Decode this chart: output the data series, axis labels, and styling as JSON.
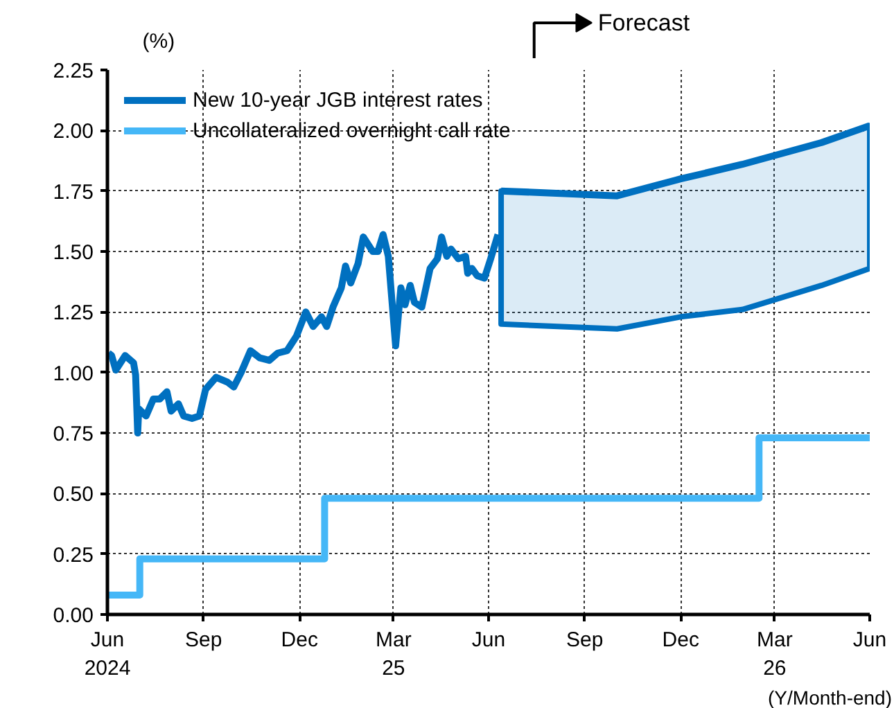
{
  "chart_data": {
    "type": "line",
    "ylabel": "(%)",
    "xlabel": "(Y/Month-end)",
    "xlim": [
      "2024-06-30",
      "2026-06-30"
    ],
    "xticks": [
      {
        "value": "2024-06-30",
        "label": "Jun\n2024"
      },
      {
        "value": "2024-09-30",
        "label": "Sep"
      },
      {
        "value": "2024-12-31",
        "label": "Dec"
      },
      {
        "value": "2025-03-31",
        "label": "Mar\n25"
      },
      {
        "value": "2025-06-30",
        "label": "Jun"
      },
      {
        "value": "2025-09-30",
        "label": "Sep"
      },
      {
        "value": "2025-12-31",
        "label": "Dec"
      },
      {
        "value": "2026-03-31",
        "label": "Mar\n26"
      },
      {
        "value": "2026-06-30",
        "label": "Jun"
      }
    ],
    "ylim": [
      0,
      2.25
    ],
    "yticks": [
      {
        "value": 0,
        "label": "0.00"
      },
      {
        "value": 0.25,
        "label": "0.25"
      },
      {
        "value": 0.5,
        "label": "0.50"
      },
      {
        "value": 0.75,
        "label": "0.75"
      },
      {
        "value": 1,
        "label": "1.00"
      },
      {
        "value": 1.25,
        "label": "1.25"
      },
      {
        "value": 1.5,
        "label": "1.50"
      },
      {
        "value": 1.75,
        "label": "1.75"
      },
      {
        "value": 2,
        "label": "2.00"
      },
      {
        "value": 2.25,
        "label": "2.25"
      }
    ],
    "grid": true,
    "legend": "top left",
    "annotations": [
      "Forecast"
    ],
    "series": [
      {
        "name": "New 10-year JGB interest rates",
        "color": "#0070c0",
        "x": [
          "2024-07-01",
          "2024-07-04",
          "2024-07-08",
          "2024-07-17",
          "2024-07-25",
          "2024-07-27",
          "2024-07-29",
          "2024-07-30",
          "2024-08-06",
          "2024-08-13",
          "2024-08-19",
          "2024-08-26",
          "2024-08-30",
          "2024-09-06",
          "2024-09-11",
          "2024-09-19",
          "2024-09-26",
          "2024-10-02",
          "2024-10-12",
          "2024-10-23",
          "2024-10-29",
          "2024-11-05",
          "2024-11-14",
          "2024-11-23",
          "2024-12-02",
          "2024-12-10",
          "2024-12-19",
          "2024-12-28",
          "2025-01-06",
          "2025-01-13",
          "2025-01-21",
          "2025-01-26",
          "2025-02-01",
          "2025-02-09",
          "2025-02-13",
          "2025-02-18",
          "2025-02-25",
          "2025-03-02",
          "2025-03-11",
          "2025-03-16",
          "2025-03-21",
          "2025-03-26",
          "2025-04-02",
          "2025-04-07",
          "2025-04-11",
          "2025-04-16",
          "2025-04-20",
          "2025-04-27",
          "2025-05-05",
          "2025-05-12",
          "2025-05-16",
          "2025-05-21",
          "2025-05-25",
          "2025-06-01",
          "2025-06-08",
          "2025-06-10",
          "2025-06-14",
          "2025-06-19",
          "2025-06-26",
          "2025-07-02",
          "2025-07-09"
        ],
        "values": [
          1.08,
          1.07,
          1.01,
          1.07,
          1.04,
          0.99,
          0.75,
          0.85,
          0.82,
          0.89,
          0.89,
          0.92,
          0.84,
          0.87,
          0.82,
          0.81,
          0.82,
          0.93,
          0.98,
          0.96,
          0.94,
          1.0,
          1.09,
          1.06,
          1.05,
          1.08,
          1.09,
          1.15,
          1.25,
          1.19,
          1.23,
          1.19,
          1.27,
          1.35,
          1.44,
          1.37,
          1.45,
          1.56,
          1.5,
          1.5,
          1.57,
          1.48,
          1.11,
          1.35,
          1.28,
          1.36,
          1.29,
          1.27,
          1.43,
          1.47,
          1.56,
          1.48,
          1.51,
          1.47,
          1.48,
          1.41,
          1.43,
          1.4,
          1.39,
          1.47,
          1.57
        ]
      },
      {
        "name": "Uncollateralized overnight call rate",
        "type": "step",
        "color": "#45b7f7",
        "x": [
          "2024-06-30",
          "2024-07-31",
          "2025-01-24",
          "2026-03-16",
          "2026-06-30"
        ],
        "values": [
          0.08,
          0.23,
          0.48,
          0.73,
          0.73
        ]
      },
      {
        "type": "line",
        "color": "#0070c0",
        "x": [
          "2025-07-12",
          "2025-10-31",
          "2025-12-31",
          "2026-02-28",
          "2026-05-15",
          "2026-06-30"
        ],
        "values": [
          1.75,
          1.73,
          1.8,
          1.86,
          1.95,
          2.02
        ],
        "upper": [
          1.75,
          1.73,
          1.8,
          1.86,
          1.95,
          2.02
        ],
        "lower": [
          1.2,
          1.18,
          1.23,
          1.26,
          1.36,
          1.43
        ]
      }
    ]
  }
}
